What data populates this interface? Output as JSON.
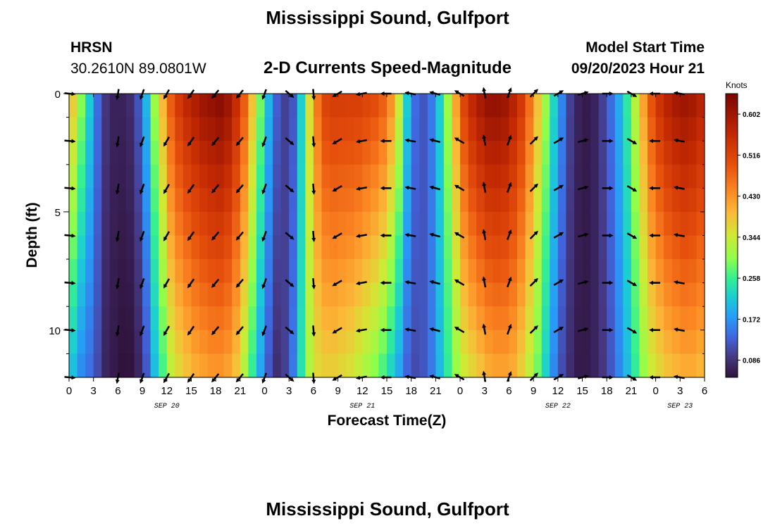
{
  "header": {
    "title": "Mississippi Sound, Gulfport",
    "station_id": "HRSN",
    "station_coords": "30.2610N  89.0801W",
    "subtitle": "2-D Currents Speed-Magnitude",
    "model_start_label": "Model Start Time",
    "model_start_value": "09/20/2023 Hour 21"
  },
  "footer": {
    "title": "Mississippi Sound, Gulfport"
  },
  "chart_data": {
    "type": "heatmap",
    "title": "2-D Currents Speed-Magnitude",
    "xlabel": "Forecast Time(Z)",
    "ylabel": "Depth (ft)",
    "x_start_hour": 0,
    "x_end_hour": 78,
    "x_step_hours": 3,
    "x_tick_labels": [
      "0",
      "3",
      "6",
      "9",
      "12",
      "15",
      "18",
      "21",
      "0",
      "3",
      "6",
      "9",
      "12",
      "15",
      "18",
      "21",
      "0",
      "3",
      "6",
      "9",
      "12",
      "15",
      "18",
      "21",
      "0",
      "3",
      "6"
    ],
    "date_labels": [
      {
        "label": "SEP 20",
        "hour": 12
      },
      {
        "label": "SEP 21",
        "hour": 36
      },
      {
        "label": "SEP 22",
        "hour": 60
      },
      {
        "label": "SEP 23",
        "hour": 75
      }
    ],
    "ylim": [
      0,
      12
    ],
    "y_ticks": [
      0,
      5,
      10
    ],
    "y_tick_labels": [
      "0",
      "5",
      "10"
    ],
    "depth_levels": [
      0,
      1,
      2,
      3,
      4,
      5,
      6,
      7,
      8,
      9,
      10,
      11,
      12
    ],
    "colorbar": {
      "unit": "Knots",
      "min": 0.05,
      "max": 0.645,
      "tick_values": [
        0.086,
        0.172,
        0.258,
        0.344,
        0.43,
        0.516,
        0.602
      ],
      "tick_labels": [
        "0.086",
        "0.172",
        "0.258",
        "0.344",
        "0.430",
        "0.516",
        "0.602"
      ]
    },
    "surface_speed_knots": [
      0.38,
      0.3,
      0.22,
      0.14,
      0.09,
      0.07,
      0.07,
      0.08,
      0.12,
      0.2,
      0.31,
      0.4,
      0.49,
      0.54,
      0.57,
      0.59,
      0.61,
      0.62,
      0.63,
      0.61,
      0.56,
      0.49,
      0.39,
      0.29,
      0.2,
      0.13,
      0.1,
      0.12,
      0.22,
      0.36,
      0.46,
      0.52,
      0.53,
      0.53,
      0.53,
      0.53,
      0.52,
      0.51,
      0.49,
      0.44,
      0.35,
      0.22,
      0.14,
      0.12,
      0.15,
      0.22,
      0.31,
      0.42,
      0.52,
      0.57,
      0.6,
      0.62,
      0.62,
      0.61,
      0.58,
      0.54,
      0.47,
      0.39,
      0.31,
      0.23,
      0.16,
      0.1,
      0.07,
      0.06,
      0.07,
      0.1,
      0.14,
      0.19,
      0.25,
      0.33,
      0.42,
      0.5,
      0.55,
      0.58,
      0.6,
      0.61,
      0.6,
      0.58
    ],
    "bottom_speed_knots": [
      0.2,
      0.16,
      0.14,
      0.11,
      0.07,
      0.06,
      0.05,
      0.05,
      0.07,
      0.12,
      0.2,
      0.26,
      0.33,
      0.36,
      0.38,
      0.4,
      0.41,
      0.42,
      0.42,
      0.41,
      0.38,
      0.32,
      0.25,
      0.18,
      0.12,
      0.08,
      0.1,
      0.15,
      0.24,
      0.32,
      0.36,
      0.37,
      0.37,
      0.36,
      0.35,
      0.33,
      0.31,
      0.29,
      0.26,
      0.22,
      0.18,
      0.13,
      0.11,
      0.12,
      0.15,
      0.2,
      0.25,
      0.3,
      0.34,
      0.36,
      0.38,
      0.4,
      0.41,
      0.41,
      0.4,
      0.37,
      0.33,
      0.28,
      0.22,
      0.16,
      0.11,
      0.08,
      0.06,
      0.06,
      0.07,
      0.09,
      0.12,
      0.16,
      0.2,
      0.25,
      0.3,
      0.34,
      0.36,
      0.38,
      0.39,
      0.4,
      0.4,
      0.39
    ],
    "vector_hours": [
      0,
      6,
      9,
      12,
      15,
      18,
      21,
      24,
      27,
      30,
      33,
      36,
      39,
      42,
      45,
      48,
      51,
      54,
      57,
      60,
      63,
      66,
      69,
      72,
      75
    ],
    "vector_depths": [
      0,
      2,
      4,
      6,
      8,
      10,
      12
    ],
    "vector_direction_deg": [
      95,
      190,
      200,
      210,
      215,
      220,
      220,
      200,
      130,
      175,
      240,
      260,
      270,
      280,
      285,
      300,
      350,
      20,
      45,
      60,
      75,
      90,
      120,
      270,
      280
    ]
  }
}
